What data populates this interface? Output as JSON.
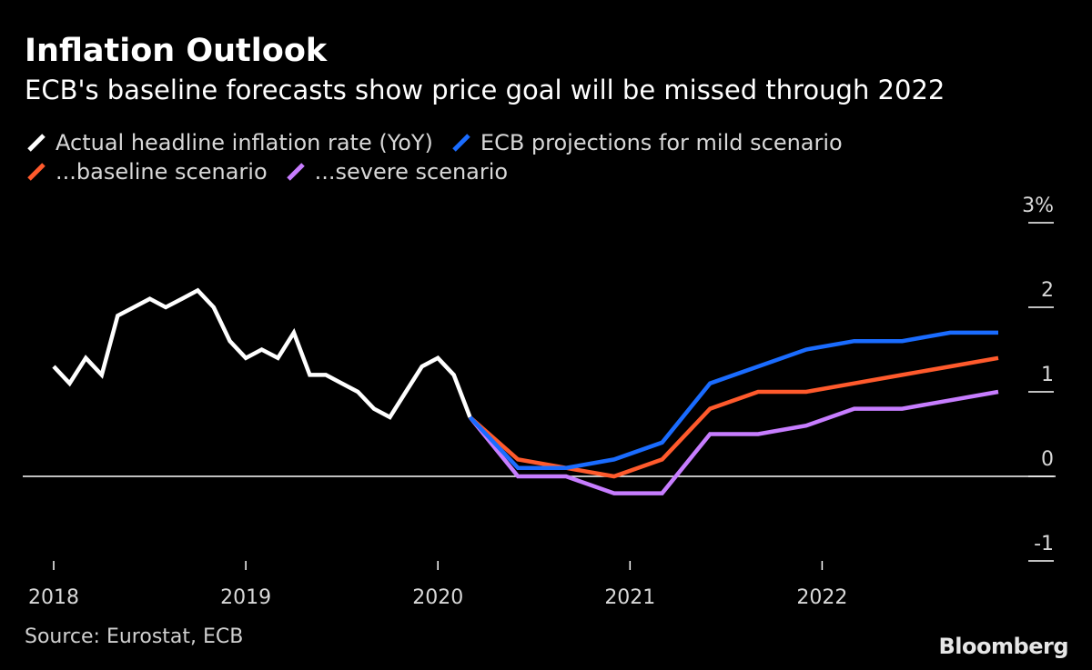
{
  "header": {
    "title": "Inflation Outlook",
    "subtitle": "ECB's baseline forecasts show price goal will be missed through 2022"
  },
  "footer": {
    "source": "Source: Eurostat, ECB",
    "brand": "Bloomberg"
  },
  "chart_data": {
    "type": "line",
    "title": "Inflation Outlook",
    "subtitle": "ECB's baseline forecasts show price goal will be missed through 2022",
    "xlabel": "",
    "ylabel": "",
    "x_range": [
      2017.95,
      2022.95
    ],
    "ylim": [
      -1,
      3
    ],
    "y_ticks": [
      {
        "value": -1,
        "label": "-1"
      },
      {
        "value": 0,
        "label": "0"
      },
      {
        "value": 1,
        "label": "1"
      },
      {
        "value": 2,
        "label": "2"
      },
      {
        "value": 3,
        "label": "3%"
      }
    ],
    "x_ticks": [
      {
        "value": 2018,
        "label": "2018"
      },
      {
        "value": 2019,
        "label": "2019"
      },
      {
        "value": 2020,
        "label": "2020"
      },
      {
        "value": 2021,
        "label": "2021"
      },
      {
        "value": 2022,
        "label": "2022"
      }
    ],
    "zero_line": true,
    "legend_position": "top",
    "series": [
      {
        "name": "Actual headline inflation rate (YoY)",
        "color": "#ffffff",
        "points": [
          [
            2018.0,
            1.3
          ],
          [
            2018.083,
            1.1
          ],
          [
            2018.167,
            1.4
          ],
          [
            2018.25,
            1.2
          ],
          [
            2018.333,
            1.9
          ],
          [
            2018.417,
            2.0
          ],
          [
            2018.5,
            2.1
          ],
          [
            2018.583,
            2.0
          ],
          [
            2018.667,
            2.1
          ],
          [
            2018.75,
            2.2
          ],
          [
            2018.833,
            2.0
          ],
          [
            2018.917,
            1.6
          ],
          [
            2019.0,
            1.4
          ],
          [
            2019.083,
            1.5
          ],
          [
            2019.167,
            1.4
          ],
          [
            2019.25,
            1.7
          ],
          [
            2019.333,
            1.2
          ],
          [
            2019.417,
            1.2
          ],
          [
            2019.5,
            1.1
          ],
          [
            2019.583,
            1.0
          ],
          [
            2019.667,
            0.8
          ],
          [
            2019.75,
            0.7
          ],
          [
            2019.833,
            1.0
          ],
          [
            2019.917,
            1.3
          ],
          [
            2020.0,
            1.4
          ],
          [
            2020.083,
            1.2
          ],
          [
            2020.167,
            0.7
          ]
        ]
      },
      {
        "name": "ECB projections for mild scenario",
        "color": "#1a6cff",
        "points": [
          [
            2020.167,
            0.7
          ],
          [
            2020.417,
            0.1
          ],
          [
            2020.667,
            0.1
          ],
          [
            2020.917,
            0.2
          ],
          [
            2021.167,
            0.4
          ],
          [
            2021.417,
            1.1
          ],
          [
            2021.667,
            1.3
          ],
          [
            2021.917,
            1.5
          ],
          [
            2022.167,
            1.6
          ],
          [
            2022.417,
            1.6
          ],
          [
            2022.667,
            1.7
          ],
          [
            2022.917,
            1.7
          ]
        ]
      },
      {
        "name": "...baseline scenario",
        "color": "#ff5a2c",
        "points": [
          [
            2020.167,
            0.7
          ],
          [
            2020.417,
            0.2
          ],
          [
            2020.667,
            0.1
          ],
          [
            2020.917,
            0.0
          ],
          [
            2021.167,
            0.2
          ],
          [
            2021.417,
            0.8
          ],
          [
            2021.667,
            1.0
          ],
          [
            2021.917,
            1.0
          ],
          [
            2022.167,
            1.1
          ],
          [
            2022.417,
            1.2
          ],
          [
            2022.667,
            1.3
          ],
          [
            2022.917,
            1.4
          ]
        ]
      },
      {
        "name": "...severe scenario",
        "color": "#c77dff",
        "points": [
          [
            2020.167,
            0.7
          ],
          [
            2020.417,
            0.0
          ],
          [
            2020.667,
            0.0
          ],
          [
            2020.917,
            -0.2
          ],
          [
            2021.167,
            -0.2
          ],
          [
            2021.417,
            0.5
          ],
          [
            2021.667,
            0.5
          ],
          [
            2021.917,
            0.6
          ],
          [
            2022.167,
            0.8
          ],
          [
            2022.417,
            0.8
          ],
          [
            2022.667,
            0.9
          ],
          [
            2022.917,
            1.0
          ]
        ]
      }
    ]
  }
}
